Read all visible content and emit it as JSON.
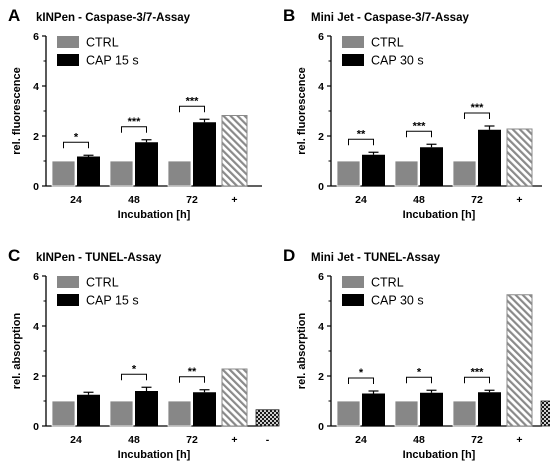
{
  "figure": {
    "colors": {
      "ctrl": "#878787",
      "cap": "#000000",
      "positive": "hatched-diagonal-gray",
      "negative": "checkered-dark"
    },
    "chart_data": [
      {
        "panel": "A",
        "type": "bar",
        "title": "kINPen - Caspase-3/7-Assay",
        "ylabel": "rel. fluorescence",
        "xlabel": "Incubation [h]",
        "ylim": [
          0,
          6
        ],
        "yticks": [
          0,
          2,
          4,
          6
        ],
        "categories": [
          "24",
          "48",
          "72",
          "+"
        ],
        "series": [
          {
            "name": "CTRL",
            "values": [
              1.0,
              1.0,
              1.0,
              null
            ]
          },
          {
            "name": "CAP 15 s",
            "values": [
              1.18,
              1.75,
              2.55,
              null
            ],
            "errors": [
              0.05,
              0.1,
              0.12,
              null
            ]
          }
        ],
        "positive_control": {
          "value": 2.82
        },
        "significance": [
          "*",
          "***",
          "***"
        ]
      },
      {
        "panel": "B",
        "type": "bar",
        "title": "Mini Jet - Caspase-3/7-Assay",
        "ylabel": "rel. fluorescence",
        "xlabel": "Incubation [h]",
        "ylim": [
          0,
          6
        ],
        "yticks": [
          0,
          2,
          4,
          6
        ],
        "categories": [
          "24",
          "48",
          "72",
          "+"
        ],
        "series": [
          {
            "name": "CTRL",
            "values": [
              1.0,
              1.0,
              1.0,
              null
            ]
          },
          {
            "name": "CAP 30 s",
            "values": [
              1.25,
              1.55,
              2.25,
              null
            ],
            "errors": [
              0.1,
              0.12,
              0.15,
              null
            ]
          }
        ],
        "positive_control": {
          "value": 2.28
        },
        "significance": [
          "**",
          "***",
          "***"
        ]
      },
      {
        "panel": "C",
        "type": "bar",
        "title": "kINPen - TUNEL-Assay",
        "ylabel": "rel. absorption",
        "xlabel": "Incubation [h]",
        "ylim": [
          0,
          6
        ],
        "yticks": [
          0,
          2,
          4,
          6
        ],
        "categories": [
          "24",
          "48",
          "72",
          "+",
          "-"
        ],
        "series": [
          {
            "name": "CTRL",
            "values": [
              1.0,
              1.0,
              1.0,
              null,
              null
            ]
          },
          {
            "name": "CAP 15 s",
            "values": [
              1.25,
              1.4,
              1.35,
              null,
              null
            ],
            "errors": [
              0.1,
              0.15,
              0.1,
              null,
              null
            ]
          }
        ],
        "positive_control": {
          "value": 2.28
        },
        "negative_control": {
          "value": 0.65
        },
        "significance": [
          "",
          "*",
          "**"
        ]
      },
      {
        "panel": "D",
        "type": "bar",
        "title": "Mini Jet - TUNEL-Assay",
        "ylabel": "rel. absorption",
        "xlabel": "Incubation [h]",
        "ylim": [
          0,
          6
        ],
        "yticks": [
          0,
          2,
          4,
          6
        ],
        "categories": [
          "24",
          "48",
          "72",
          "+",
          "-"
        ],
        "series": [
          {
            "name": "CTRL",
            "values": [
              1.0,
              1.0,
              1.0,
              null,
              null
            ]
          },
          {
            "name": "CAP 30 s",
            "values": [
              1.3,
              1.33,
              1.35,
              null,
              null
            ],
            "errors": [
              0.1,
              0.1,
              0.08,
              null,
              null
            ]
          }
        ],
        "positive_control": {
          "value": 5.25
        },
        "negative_control": {
          "value": 1.0
        },
        "significance": [
          "*",
          "*",
          "***"
        ]
      }
    ]
  }
}
